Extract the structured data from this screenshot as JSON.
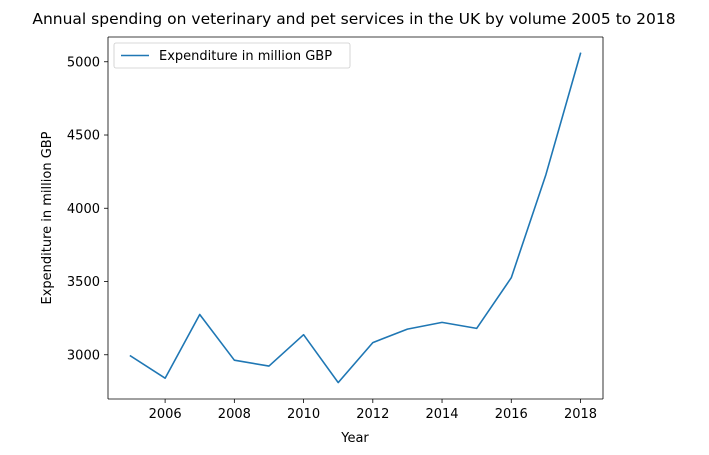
{
  "chart_data": {
    "type": "line",
    "title": "Annual spending on veterinary and pet services in the UK by volume 2005 to 2018",
    "xlabel": "Year",
    "ylabel": "Expenditure in million GBP",
    "x": [
      2005,
      2006,
      2007,
      2008,
      2009,
      2010,
      2011,
      2012,
      2013,
      2014,
      2015,
      2016,
      2017,
      2018
    ],
    "series": [
      {
        "name": "Expenditure in million GBP",
        "color": "#1f77b4",
        "values": [
          2992,
          2840,
          3275,
          2963,
          2923,
          3137,
          2810,
          3083,
          3175,
          3221,
          3180,
          3526,
          4229,
          5057
        ]
      }
    ],
    "xlim": [
      2004.35,
      2018.65
    ],
    "ylim": [
      2698,
      5169
    ],
    "xticks": [
      2006,
      2008,
      2010,
      2012,
      2014,
      2016,
      2018
    ],
    "yticks": [
      3000,
      3500,
      4000,
      4500,
      5000
    ],
    "grid": false,
    "legend_position": "top-left"
  }
}
